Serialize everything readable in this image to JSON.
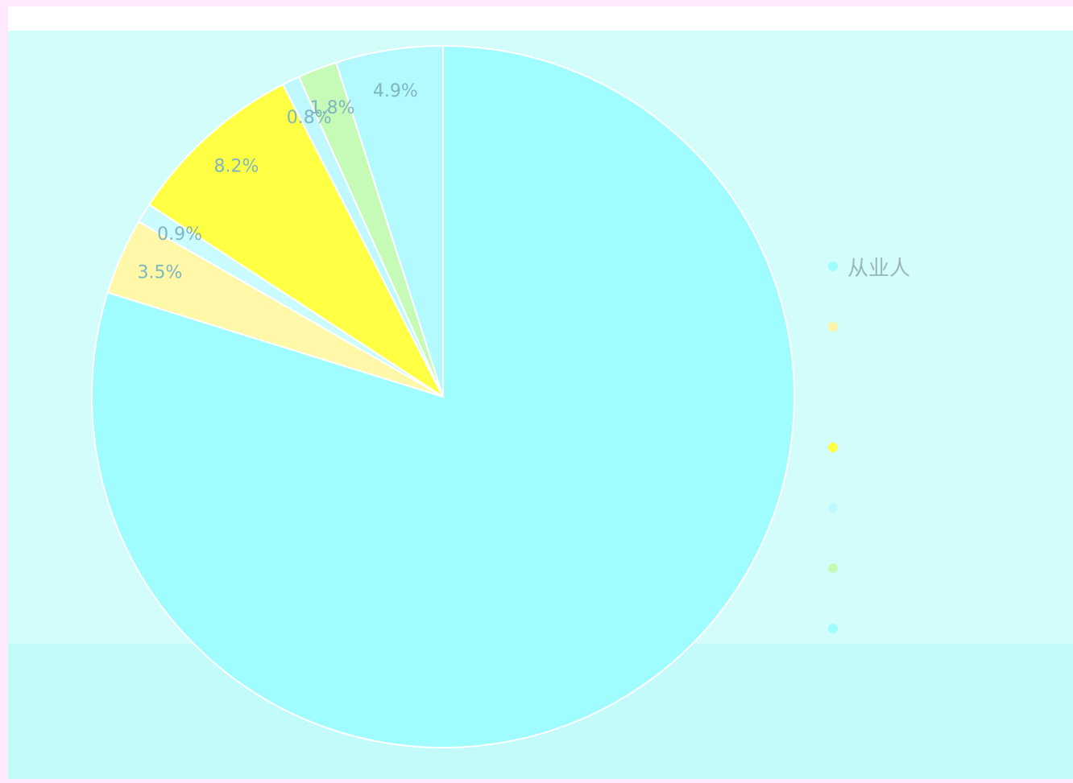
{
  "chart_data": {
    "type": "pie",
    "slices": [
      {
        "label": "",
        "value": 79.4,
        "pct_label": "",
        "color": "#9ffcff"
      },
      {
        "label": "",
        "value": 3.5,
        "pct_label": "3.5%",
        "color": "#fff8a8"
      },
      {
        "label": "",
        "value": 0.9,
        "pct_label": "0.9%",
        "color": "#c9fbff"
      },
      {
        "label": "",
        "value": 8.2,
        "pct_label": "8.2%",
        "color": "#ffff44"
      },
      {
        "label": "",
        "value": 0.8,
        "pct_label": "0.8%",
        "color": "#bff9ff"
      },
      {
        "label": "",
        "value": 1.8,
        "pct_label": "1.8%",
        "color": "#c6fbb7"
      },
      {
        "label": "",
        "value": 4.9,
        "pct_label": "4.9%",
        "color": "#b3faff"
      }
    ],
    "legend": [
      {
        "label": "从业人",
        "color": "#9ffcff"
      },
      {
        "label": "",
        "color": "#fff3a8"
      },
      {
        "label": "",
        "color": "#ffff44"
      },
      {
        "label": "",
        "color": "#bff9ff"
      },
      {
        "label": "",
        "color": "#c6fbb7"
      },
      {
        "label": "",
        "color": "#9ffcff"
      }
    ],
    "legend_position": "right",
    "start_angle_deg": 0,
    "direction": "clockwise"
  }
}
